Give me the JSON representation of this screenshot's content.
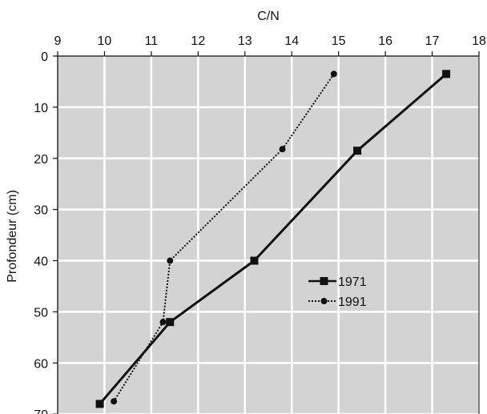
{
  "chart_data": {
    "type": "line",
    "xlabel": "C/N",
    "ylabel": "Profondeur (cm)",
    "x_axis_position": "top",
    "y_axis_inverted": true,
    "xlim": [
      9,
      18
    ],
    "ylim": [
      0,
      70
    ],
    "xticks": [
      9,
      10,
      11,
      12,
      13,
      14,
      15,
      16,
      17,
      18
    ],
    "yticks": [
      0,
      10,
      20,
      30,
      40,
      50,
      60,
      70
    ],
    "grid": true,
    "plot_background": "#d3d3d3",
    "grid_color": "#ffffff",
    "legend_placement": "center-right",
    "series": [
      {
        "name": "1971",
        "style": "solid",
        "marker": "square",
        "color": "#111111",
        "points": [
          {
            "x": 17.3,
            "y": 3.5
          },
          {
            "x": 15.4,
            "y": 18.5
          },
          {
            "x": 13.2,
            "y": 40
          },
          {
            "x": 11.4,
            "y": 52
          },
          {
            "x": 9.9,
            "y": 68
          }
        ]
      },
      {
        "name": "1991",
        "style": "dotted",
        "marker": "circle",
        "color": "#111111",
        "points": [
          {
            "x": 14.9,
            "y": 3.5
          },
          {
            "x": 13.8,
            "y": 18.2
          },
          {
            "x": 11.4,
            "y": 40
          },
          {
            "x": 11.25,
            "y": 52
          },
          {
            "x": 10.2,
            "y": 67.5
          }
        ]
      }
    ]
  }
}
